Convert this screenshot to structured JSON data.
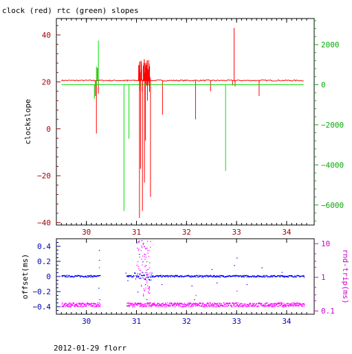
{
  "title": "clock (red) rtc (green) slopes",
  "footer": "2012-01-29 florr",
  "colors": {
    "clock": "#ff0000",
    "rtc": "#00dd00",
    "offset": "#0000ff",
    "rndtrip": "#ff00ff",
    "axis": "#000000"
  },
  "chart_data": [
    {
      "type": "line",
      "title": "clock (red) rtc (green) slopes",
      "ylabel": "clockslope",
      "y2label": "",
      "xlim": [
        29.4,
        34.55
      ],
      "ylim": [
        -41,
        47
      ],
      "y2lim": [
        -7000,
        3300
      ],
      "xticks": [
        30,
        31,
        32,
        33,
        34
      ],
      "yticks": [
        -40,
        -20,
        0,
        20,
        40
      ],
      "y2ticks": [
        -6000,
        -4000,
        -2000,
        0,
        2000
      ],
      "series": [
        {
          "name": "clock",
          "axis": "left",
          "color": "#ff0000",
          "baseline": 20.6,
          "segments": [
            [
              29.5,
              34.35
            ]
          ],
          "spikes": [
            [
              30.18,
              14
            ],
            [
              30.2,
              -2
            ],
            [
              30.22,
              26
            ],
            [
              30.24,
              15
            ],
            [
              30.75,
              20.3
            ],
            [
              30.82,
              20.2
            ],
            [
              30.95,
              20.5
            ],
            [
              31.05,
              27
            ],
            [
              31.06,
              -38
            ],
            [
              31.08,
              -17
            ],
            [
              31.1,
              27.5
            ],
            [
              31.12,
              -35
            ],
            [
              31.14,
              26
            ],
            [
              31.16,
              -23
            ],
            [
              31.18,
              -5
            ],
            [
              31.2,
              24
            ],
            [
              31.22,
              12
            ],
            [
              31.25,
              20
            ],
            [
              31.28,
              -29
            ],
            [
              31.52,
              6
            ],
            [
              32.18,
              4
            ],
            [
              32.48,
              16
            ],
            [
              32.92,
              18.5
            ],
            [
              32.95,
              43
            ],
            [
              32.97,
              18
            ],
            [
              33.45,
              14
            ]
          ]
        },
        {
          "name": "rtc",
          "axis": "right",
          "color": "#00dd00",
          "baseline": 0,
          "segments": [
            [
              29.5,
              34.35
            ]
          ],
          "spikes": [
            [
              30.16,
              -700
            ],
            [
              30.2,
              900
            ],
            [
              30.24,
              2200
            ],
            [
              30.75,
              -6300
            ],
            [
              30.85,
              -2700
            ],
            [
              32.78,
              -4300
            ]
          ]
        }
      ]
    },
    {
      "type": "scatter",
      "xlabel": "",
      "ylabel": "offset(ms)",
      "y2label": "rnd-trip(ms)",
      "y2scale": "log",
      "xlim": [
        29.4,
        34.55
      ],
      "ylim": [
        -0.5,
        0.5
      ],
      "y2lim": [
        0.08,
        14
      ],
      "xticks": [
        30,
        31,
        32,
        33,
        34
      ],
      "yticks": [
        -0.4,
        -0.2,
        0,
        0.2,
        0.4
      ],
      "yticklabels": [
        "−0.4",
        "−0.2",
        "0",
        "0.2",
        "0.4"
      ],
      "y2ticks": [
        0.1,
        1,
        10
      ],
      "series": [
        {
          "name": "offset",
          "axis": "left",
          "color": "#0000ff",
          "segments": [
            [
              29.5,
              30.27
            ],
            [
              30.8,
              34.35
            ]
          ],
          "level": 0,
          "outliers": [
            [
              30.24,
              -0.15
            ],
            [
              30.25,
              0.22
            ],
            [
              30.25,
              0.35
            ],
            [
              30.26,
              -0.3
            ],
            [
              30.78,
              0.05
            ],
            [
              30.82,
              -0.05
            ],
            [
              31.0,
              0.45
            ],
            [
              31.02,
              -0.2
            ],
            [
              31.05,
              0.3
            ],
            [
              31.07,
              -0.35
            ],
            [
              31.1,
              0.48
            ],
            [
              31.12,
              0.2
            ],
            [
              31.13,
              -0.25
            ],
            [
              31.15,
              0.4
            ],
            [
              31.17,
              -0.1
            ],
            [
              31.18,
              0.15
            ],
            [
              31.2,
              -0.3
            ],
            [
              31.22,
              0.1
            ],
            [
              31.3,
              0.05
            ],
            [
              31.5,
              -0.1
            ],
            [
              31.8,
              0.02
            ],
            [
              32.1,
              -0.12
            ],
            [
              32.15,
              -0.3
            ],
            [
              32.5,
              0.1
            ],
            [
              32.6,
              -0.08
            ],
            [
              32.95,
              0.15
            ],
            [
              33.0,
              0.25
            ],
            [
              33.2,
              -0.1
            ],
            [
              33.5,
              0.12
            ],
            [
              33.9,
              0.06
            ]
          ]
        },
        {
          "name": "rnd-trip",
          "axis": "right",
          "color": "#ff00ff",
          "segments": [
            [
              29.5,
              30.27
            ],
            [
              30.8,
              34.35
            ]
          ],
          "level": 0.15,
          "outliers": [
            [
              30.25,
              2.0
            ],
            [
              31.05,
              12
            ],
            [
              31.1,
              8
            ],
            [
              31.15,
              5
            ],
            [
              31.2,
              3
            ],
            [
              32.18,
              0.3
            ],
            [
              33.0,
              0.4
            ]
          ]
        }
      ]
    }
  ]
}
